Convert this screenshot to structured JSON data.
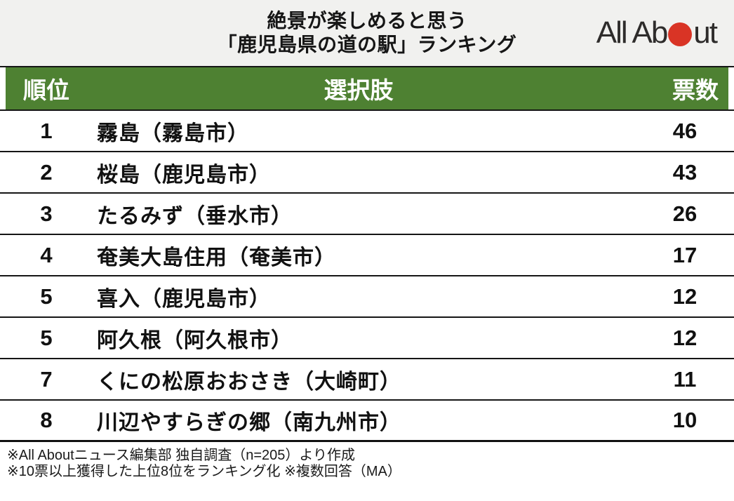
{
  "header": {
    "title_line1": "絶景が楽しめると思う",
    "title_line2": "「鹿児島県の道の駅」ランキング",
    "logo": {
      "text_before_dot": "All Ab",
      "text_after_dot": "ut",
      "dot_color": "#d93425",
      "alt": "All About"
    },
    "background_color": "#f1f1ef"
  },
  "table": {
    "header_background_color": "#4e8132",
    "header_text_color": "#ffffff",
    "columns": {
      "rank": "順位",
      "choice": "選択肢",
      "votes": "票数"
    }
  },
  "chart_data": {
    "type": "table",
    "title": "絶景が楽しめると思う「鹿児島県の道の駅」ランキング",
    "columns": [
      "順位",
      "選択肢",
      "票数"
    ],
    "rows": [
      {
        "rank": "1",
        "choice": "霧島（霧島市）",
        "votes": "46"
      },
      {
        "rank": "2",
        "choice": "桜島（鹿児島市）",
        "votes": "43"
      },
      {
        "rank": "3",
        "choice": "たるみず（垂水市）",
        "votes": "26"
      },
      {
        "rank": "4",
        "choice": "奄美大島住用（奄美市）",
        "votes": "17"
      },
      {
        "rank": "5",
        "choice": "喜入（鹿児島市）",
        "votes": "12"
      },
      {
        "rank": "5",
        "choice": "阿久根（阿久根市）",
        "votes": "12"
      },
      {
        "rank": "7",
        "choice": "くにの松原おおさき（大崎町）",
        "votes": "11"
      },
      {
        "rank": "8",
        "choice": "川辺やすらぎの郷（南九州市）",
        "votes": "10"
      }
    ],
    "n": 205
  },
  "footer": {
    "note1": "※All Aboutニュース編集部 独自調査（n=205）より作成",
    "note2": "※10票以上獲得した上位8位をランキング化 ※複数回答（MA）"
  }
}
